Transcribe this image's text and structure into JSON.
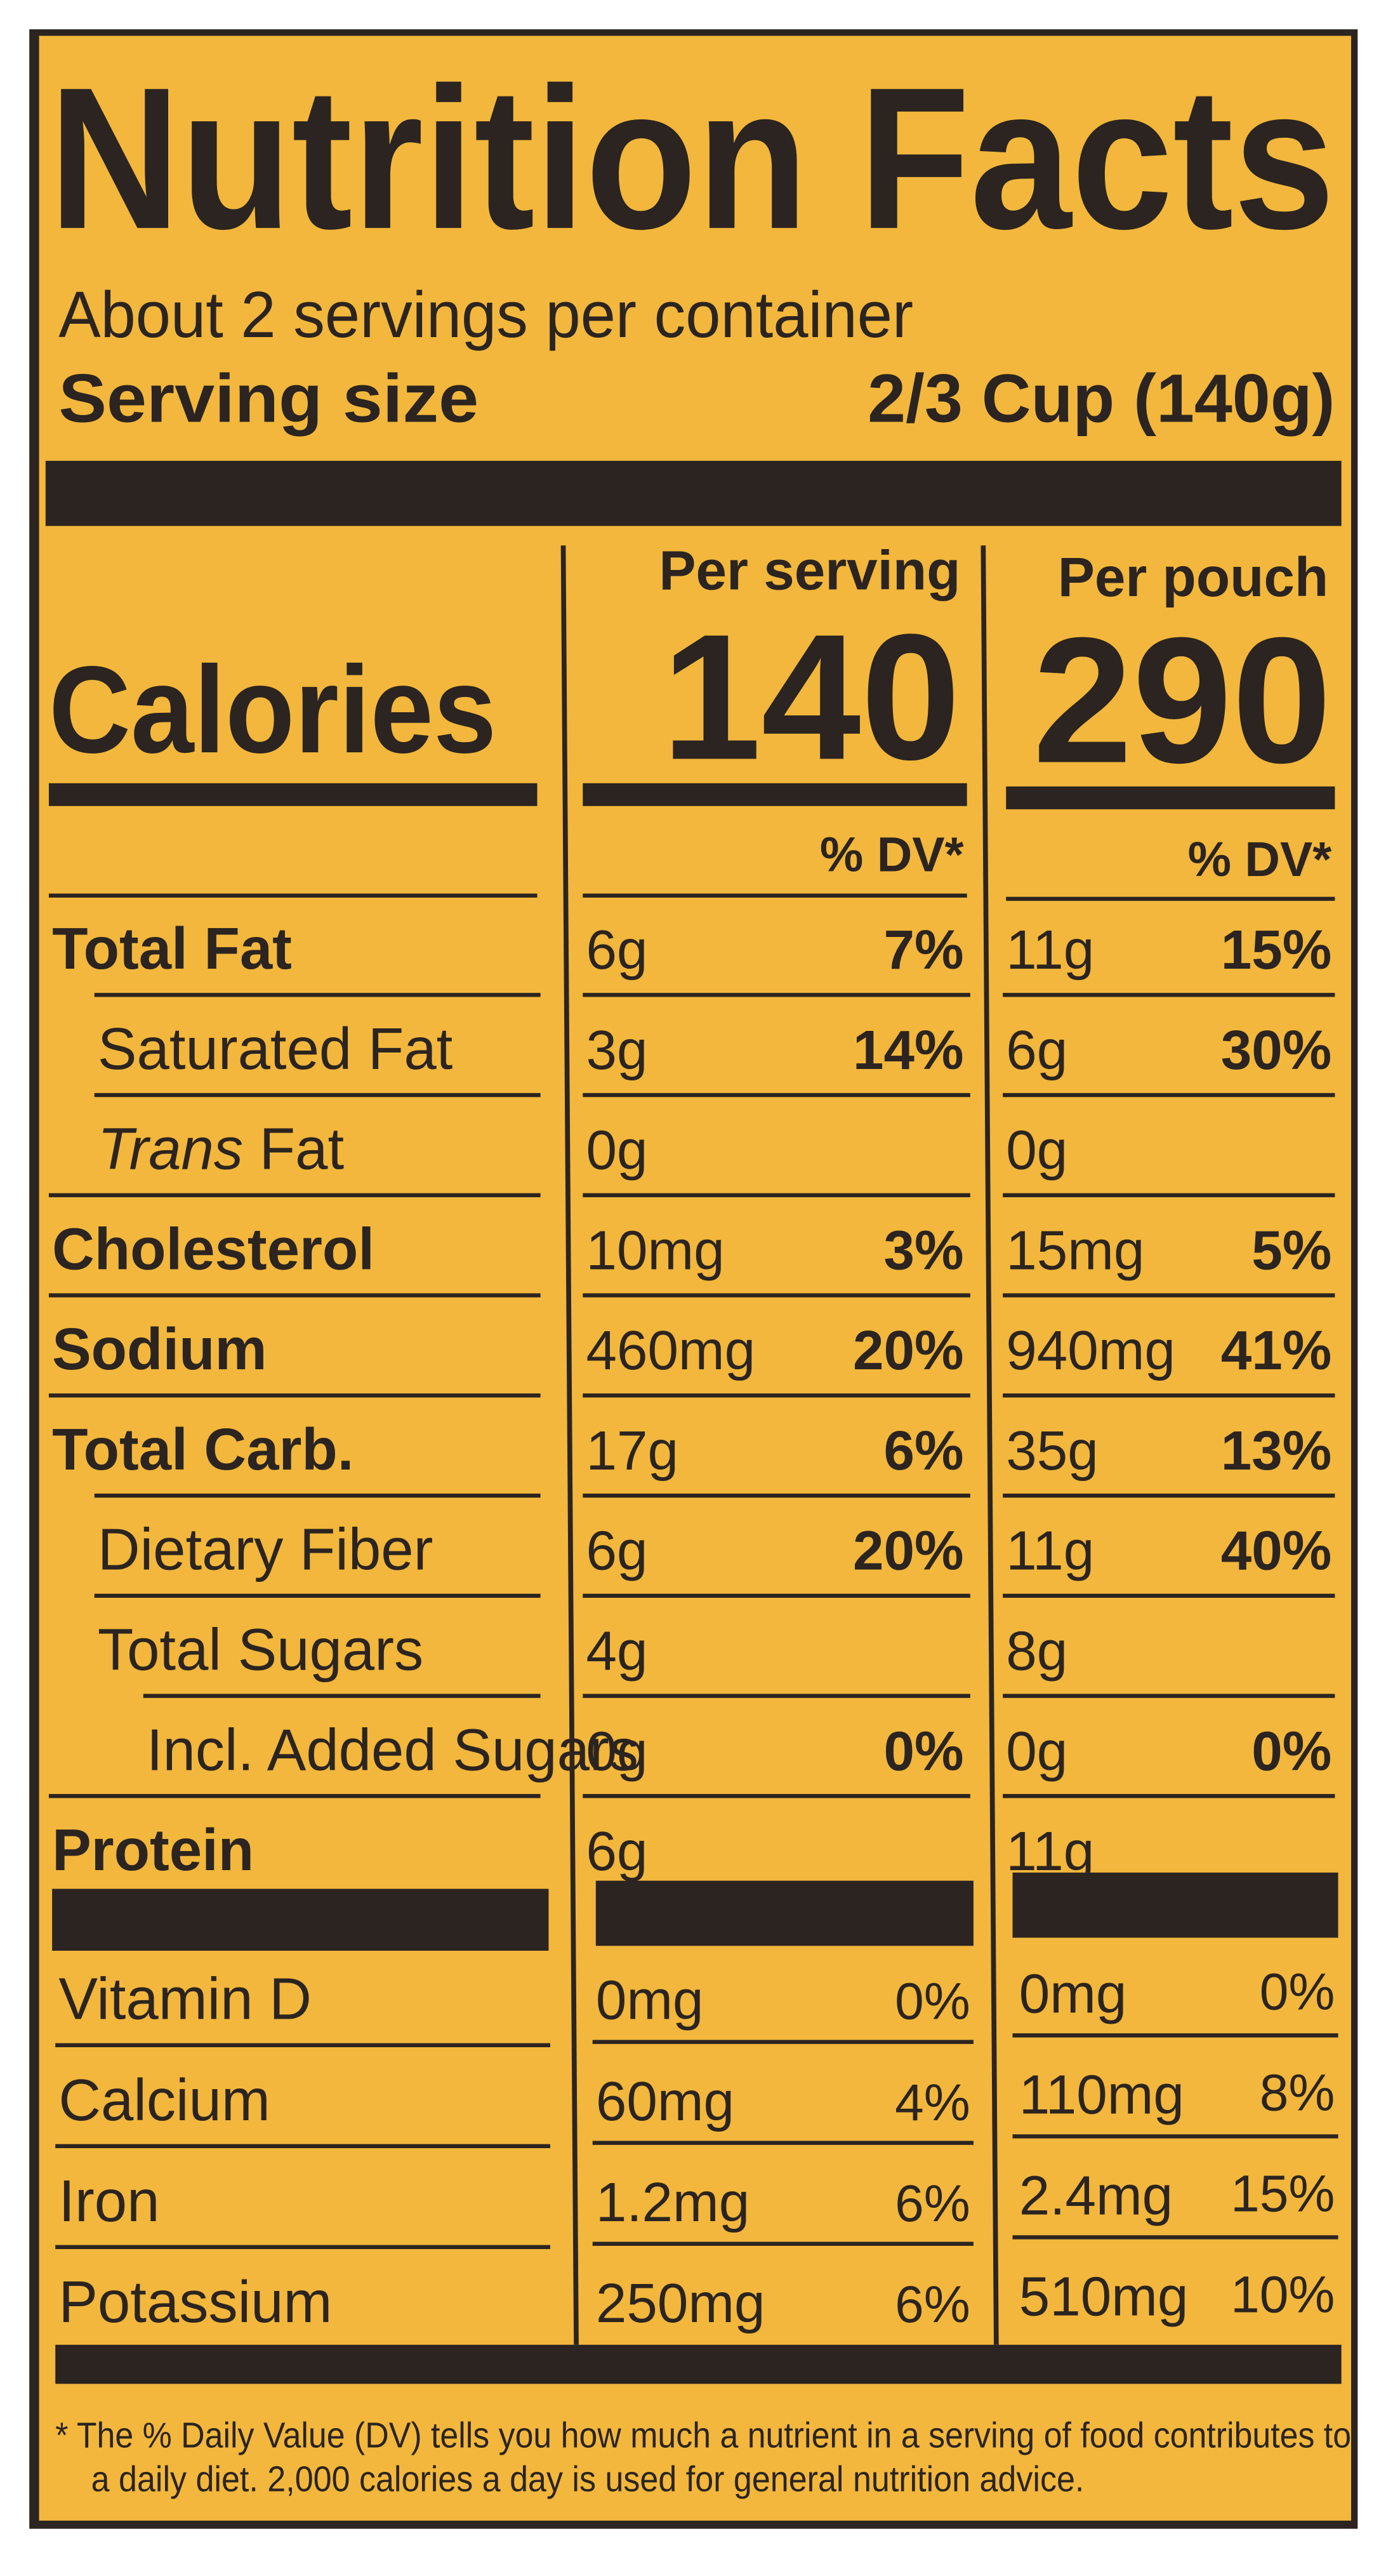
{
  "header": {
    "title": "Nutrition Facts",
    "servings": "About 2 servings per container",
    "serving_size_label": "Serving size",
    "serving_size_value": "2/3 Cup (140g)"
  },
  "columns": {
    "serving": "Per serving",
    "pouch": "Per pouch",
    "dv_serving": "% DV*",
    "dv_pouch": "% DV*"
  },
  "calories": {
    "label": "Calories",
    "serving": "140",
    "pouch": "290"
  },
  "rows": [
    {
      "name": "Total Fat",
      "serving": {
        "amount": "6g",
        "dv": "7%"
      },
      "pouch": {
        "amount": "11g",
        "dv": "15%"
      }
    },
    {
      "name": "Saturated Fat",
      "serving": {
        "amount": "3g",
        "dv": "14%"
      },
      "pouch": {
        "amount": "6g",
        "dv": "30%"
      }
    },
    {
      "name_italic": "Trans",
      "name": "Fat",
      "serving": {
        "amount": "0g"
      },
      "pouch": {
        "amount": "0g"
      }
    },
    {
      "name": "Cholesterol",
      "serving": {
        "amount": "10mg",
        "dv": "3%"
      },
      "pouch": {
        "amount": "15mg",
        "dv": "5%"
      }
    },
    {
      "name": "Sodium",
      "serving": {
        "amount": "460mg",
        "dv": "20%"
      },
      "pouch": {
        "amount": "940mg",
        "dv": "41%"
      }
    },
    {
      "name": "Total Carb.",
      "serving": {
        "amount": "17g",
        "dv": "6%"
      },
      "pouch": {
        "amount": "35g",
        "dv": "13%"
      }
    },
    {
      "name": "Dietary Fiber",
      "serving": {
        "amount": "6g",
        "dv": "20%"
      },
      "pouch": {
        "amount": "11g",
        "dv": "40%"
      }
    },
    {
      "name": "Total Sugars",
      "serving": {
        "amount": "4g"
      },
      "pouch": {
        "amount": "8g"
      }
    },
    {
      "name": "Incl. Added Sugars",
      "serving": {
        "amount": "0g",
        "dv": "0%"
      },
      "pouch": {
        "amount": "0g",
        "dv": "0%"
      }
    },
    {
      "name": "Protein",
      "serving": {
        "amount": "6g"
      },
      "pouch": {
        "amount": "11g"
      }
    }
  ],
  "vitamins": [
    {
      "name": "Vitamin D",
      "serving": {
        "amount": "0mg",
        "dv": "0%"
      },
      "pouch": {
        "amount": "0mg",
        "dv": "0%"
      }
    },
    {
      "name": "Calcium",
      "serving": {
        "amount": "60mg",
        "dv": "4%"
      },
      "pouch": {
        "amount": "110mg",
        "dv": "8%"
      }
    },
    {
      "name": "Iron",
      "serving": {
        "amount": "1.2mg",
        "dv": "6%"
      },
      "pouch": {
        "amount": "2.4mg",
        "dv": "15%"
      }
    },
    {
      "name": "Potassium",
      "serving": {
        "amount": "250mg",
        "dv": "6%"
      },
      "pouch": {
        "amount": "510mg",
        "dv": "10%"
      }
    }
  ],
  "footnote": [
    "* The % Daily Value (DV) tells you how much a nutrient in a serving of food contributes to",
    "a daily diet. 2,000 calories a day is used for general nutrition advice."
  ]
}
